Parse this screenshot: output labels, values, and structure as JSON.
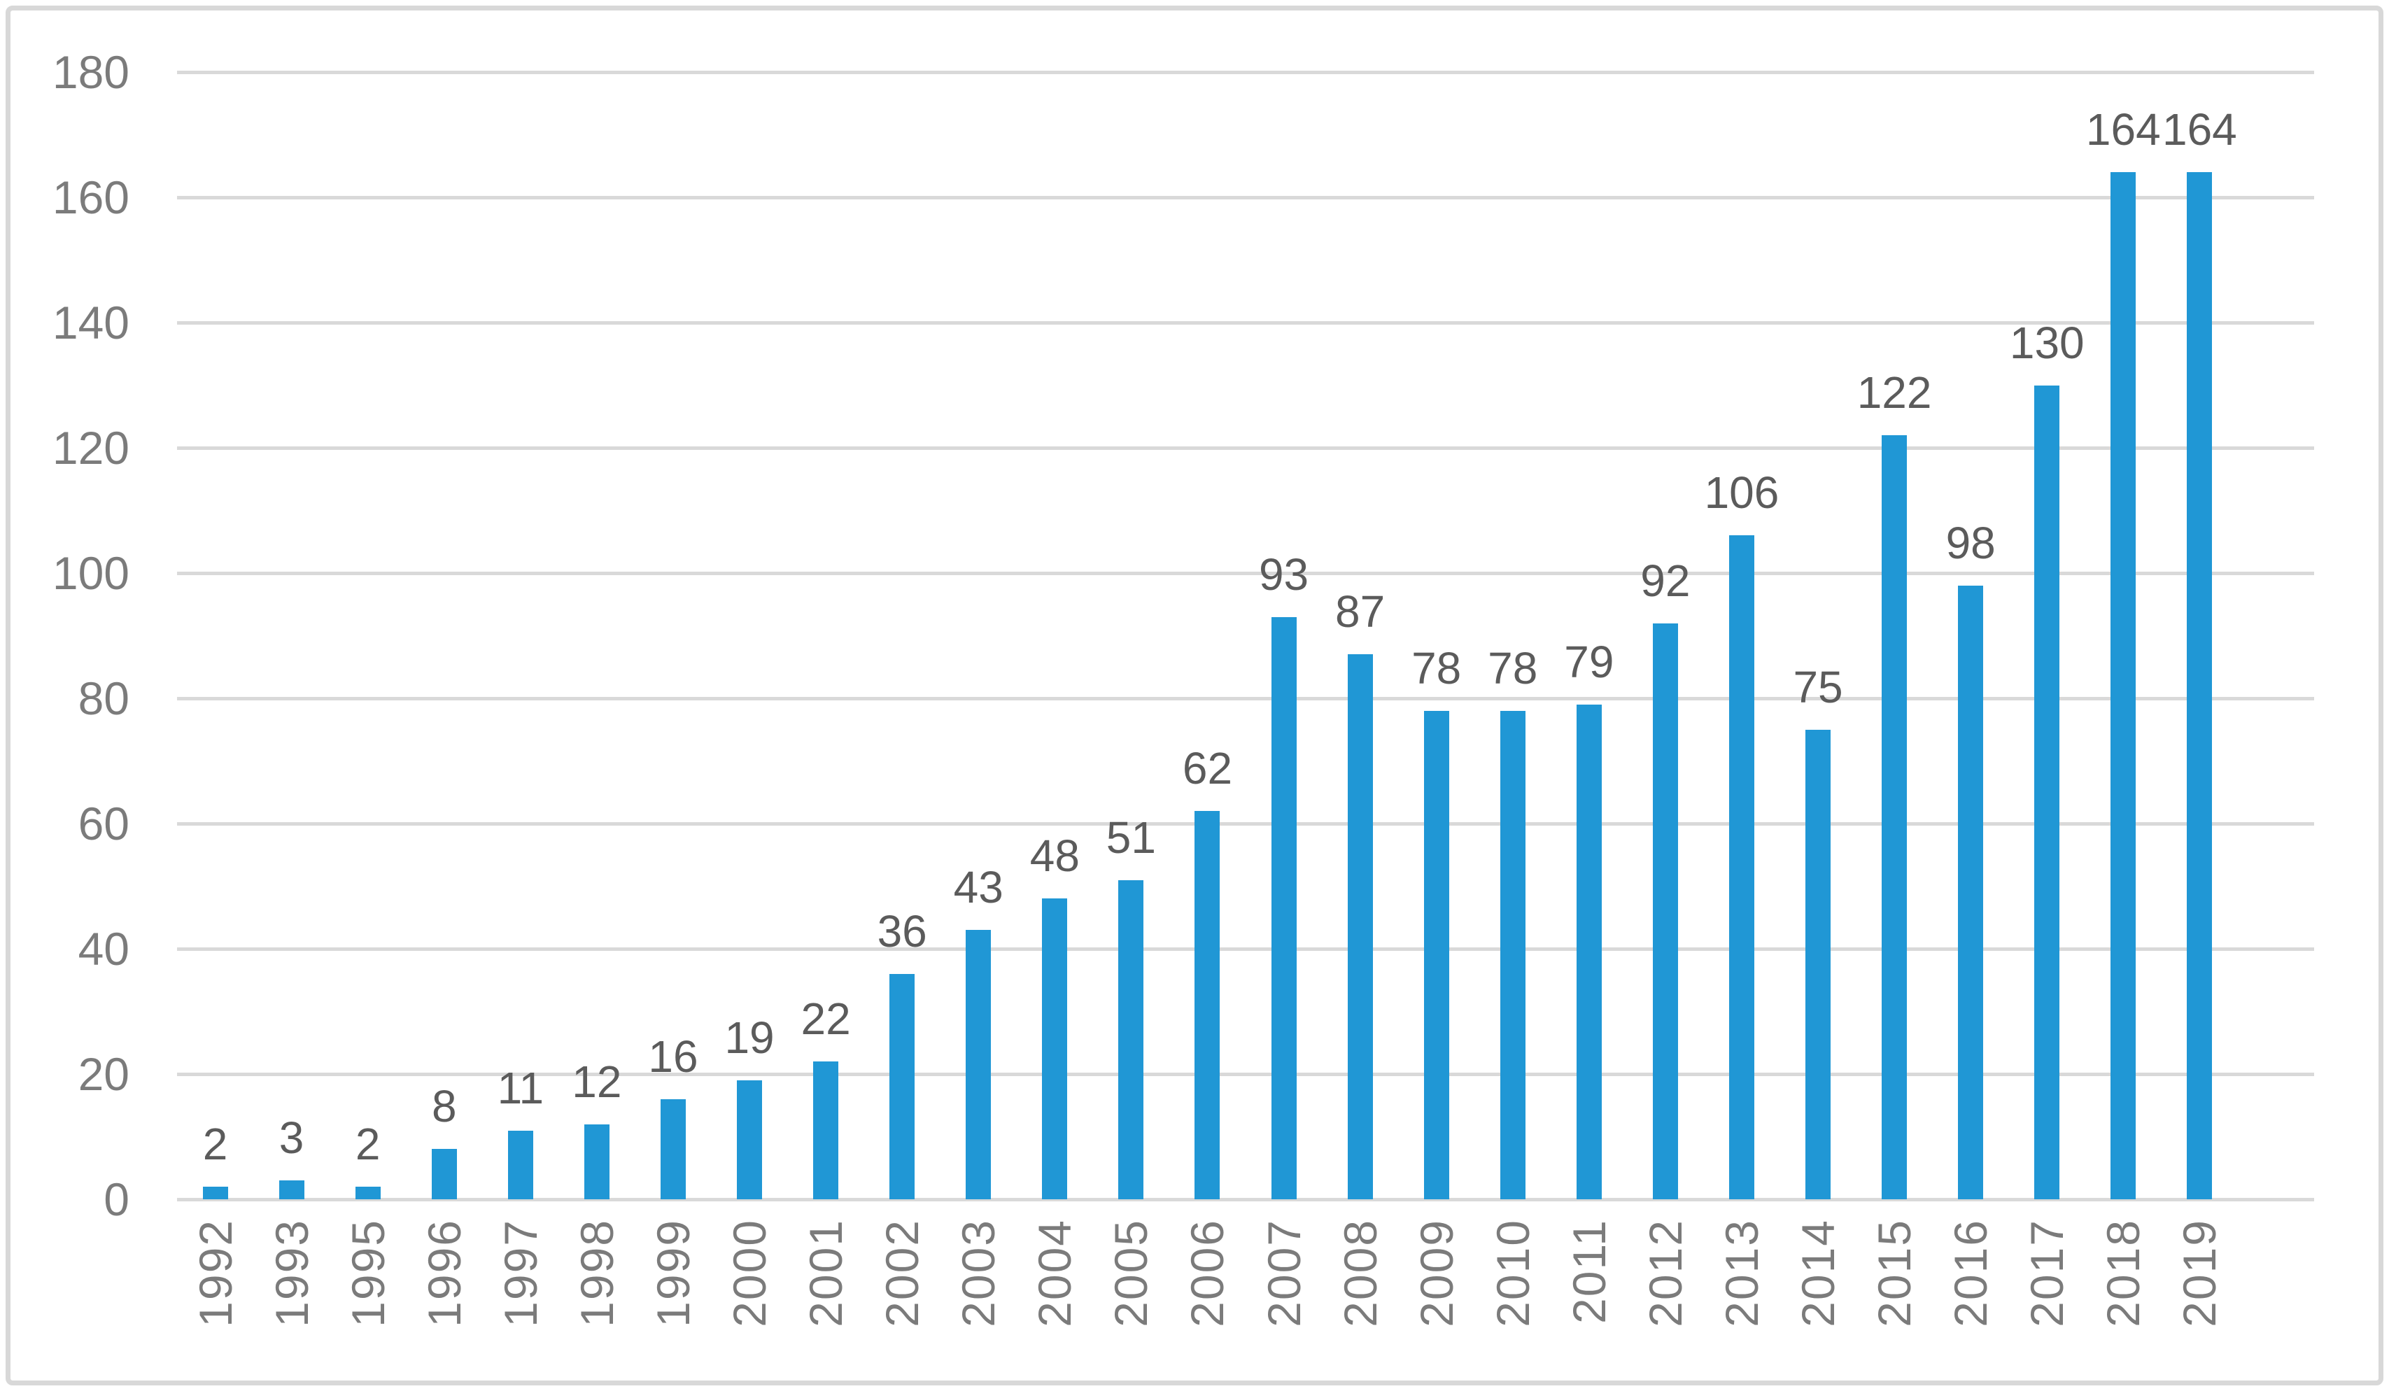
{
  "chart_data": {
    "type": "bar",
    "title": "",
    "xlabel": "",
    "ylabel": "",
    "categories": [
      "1992",
      "1993",
      "1995",
      "1996",
      "1997",
      "1998",
      "1999",
      "2000",
      "2001",
      "2002",
      "2003",
      "2004",
      "2005",
      "2006",
      "2007",
      "2008",
      "2009",
      "2010",
      "2011",
      "2012",
      "2013",
      "2014",
      "2015",
      "2016",
      "2017",
      "2018",
      "2019"
    ],
    "values": [
      2,
      3,
      2,
      8,
      11,
      12,
      16,
      19,
      22,
      36,
      43,
      48,
      51,
      62,
      93,
      87,
      78,
      78,
      79,
      92,
      106,
      75,
      122,
      98,
      130,
      164,
      164
    ],
    "y_ticks": [
      0,
      20,
      40,
      60,
      80,
      100,
      120,
      140,
      160,
      180
    ],
    "ylim": [
      0,
      180
    ],
    "grid": "horizontal",
    "legend": "none",
    "data_labels": "outside-end",
    "x_label_rotation_degrees": 90,
    "bar_color": "#2097D5",
    "gridline_color": "#D9D9D9",
    "axis_text_color": "#7B7B7B",
    "data_label_color": "#5B5B5B",
    "frame_border_color": "#D8D8D8",
    "background_color": "#FFFFFF"
  }
}
